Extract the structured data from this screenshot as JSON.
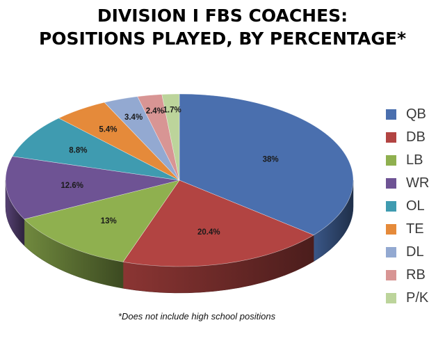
{
  "title_lines": [
    "DIVISION I FBS COACHES:",
    "POSITIONS PLAYED, BY PERCENTAGE*"
  ],
  "footnote": "*Does not include high school positions",
  "chart_data": {
    "type": "pie",
    "style": "3d",
    "title": "DIVISION I FBS COACHES: POSITIONS PLAYED, BY PERCENTAGE*",
    "legend_position": "right",
    "categories": [
      "QB",
      "DB",
      "LB",
      "WR",
      "OL",
      "TE",
      "DL",
      "RB",
      "P/K"
    ],
    "values": [
      38,
      20.4,
      13,
      12.6,
      8.8,
      5.4,
      3.4,
      2.4,
      1.7
    ],
    "labels": [
      "38%",
      "20.4%",
      "13%",
      "12.6%",
      "8.8%",
      "5.4%",
      "3.4%",
      "2.4%",
      "1.7%"
    ],
    "colors": [
      "#4a6fae",
      "#b24442",
      "#8fb04f",
      "#6e5394",
      "#3f9bb0",
      "#e58a3a",
      "#93a9d1",
      "#d89594",
      "#bcd49b"
    ]
  }
}
